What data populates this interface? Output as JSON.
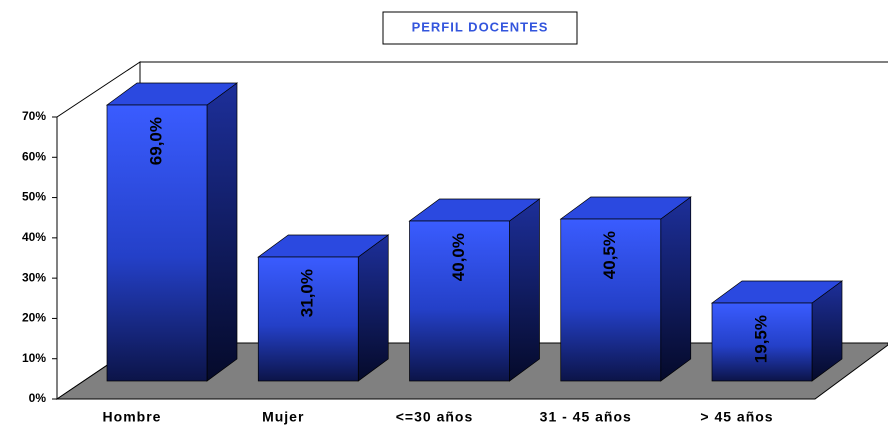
{
  "chart_data": {
    "type": "bar3d",
    "title": "PERFIL DOCENTES",
    "categories": [
      "Hombre",
      "Mujer",
      "<=30 años",
      "31 - 45 años",
      "> 45 años"
    ],
    "values": [
      69.0,
      31.0,
      40.0,
      40.5,
      19.5
    ],
    "value_labels": [
      "69,0%",
      "31,0%",
      "40,0%",
      "40,5%",
      "19,5%"
    ],
    "color": "#3355ff",
    "ylim": [
      0,
      70
    ],
    "yticks": [
      {
        "value": 0,
        "label": "0%"
      },
      {
        "value": 10,
        "label": "10%"
      },
      {
        "value": 20,
        "label": "20%"
      },
      {
        "value": 30,
        "label": "30%"
      },
      {
        "value": 40,
        "label": "40%"
      },
      {
        "value": 50,
        "label": "50%"
      },
      {
        "value": 60,
        "label": "60%"
      },
      {
        "value": 70,
        "label": "70%"
      }
    ],
    "grid": false
  }
}
